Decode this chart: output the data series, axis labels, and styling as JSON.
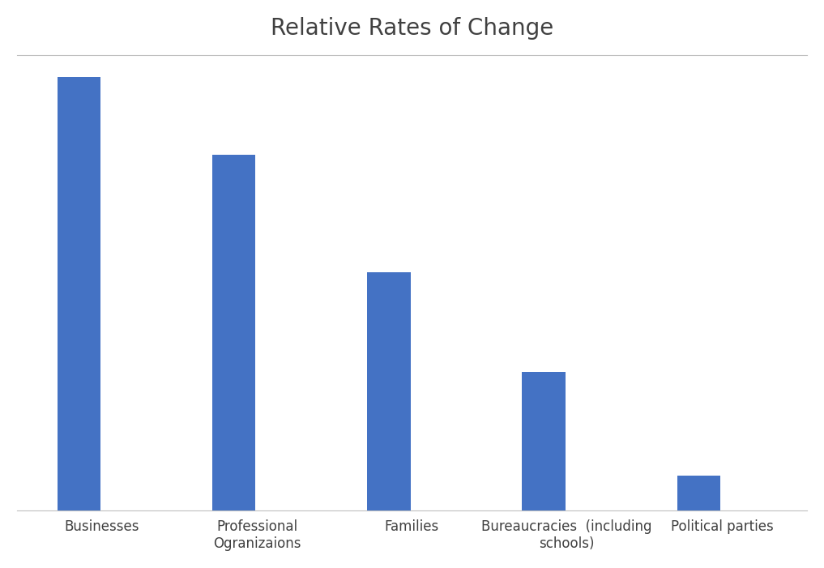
{
  "title": "Relative Rates of Change",
  "categories": [
    "Businesses",
    "Professional\nOgranizaions",
    "Families",
    "Bureaucracies  (including\nschools)",
    "Political parties"
  ],
  "values": [
    100,
    82,
    55,
    32,
    8
  ],
  "bar_color": "#4472C4",
  "ylim": [
    0,
    105
  ],
  "background_color": "#ffffff",
  "title_fontsize": 20,
  "tick_fontsize": 12,
  "bar_width": 0.28
}
